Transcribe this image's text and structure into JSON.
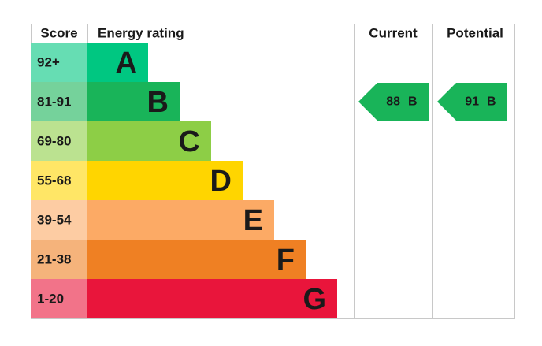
{
  "header": {
    "score": "Score",
    "rating": "Energy rating",
    "current": "Current",
    "potential": "Potential"
  },
  "bands": [
    {
      "score": "92+",
      "letter": "A",
      "color": "#00c781"
    },
    {
      "score": "81-91",
      "letter": "B",
      "color": "#19b459"
    },
    {
      "score": "69-80",
      "letter": "C",
      "color": "#8dce46"
    },
    {
      "score": "55-68",
      "letter": "D",
      "color": "#ffd500"
    },
    {
      "score": "39-54",
      "letter": "E",
      "color": "#fcaa65"
    },
    {
      "score": "21-38",
      "letter": "F",
      "color": "#ef8023"
    },
    {
      "score": "1-20",
      "letter": "G",
      "color": "#e9153b"
    }
  ],
  "current": {
    "value": 88,
    "letter": "B"
  },
  "potential": {
    "value": 91,
    "letter": "B"
  }
}
